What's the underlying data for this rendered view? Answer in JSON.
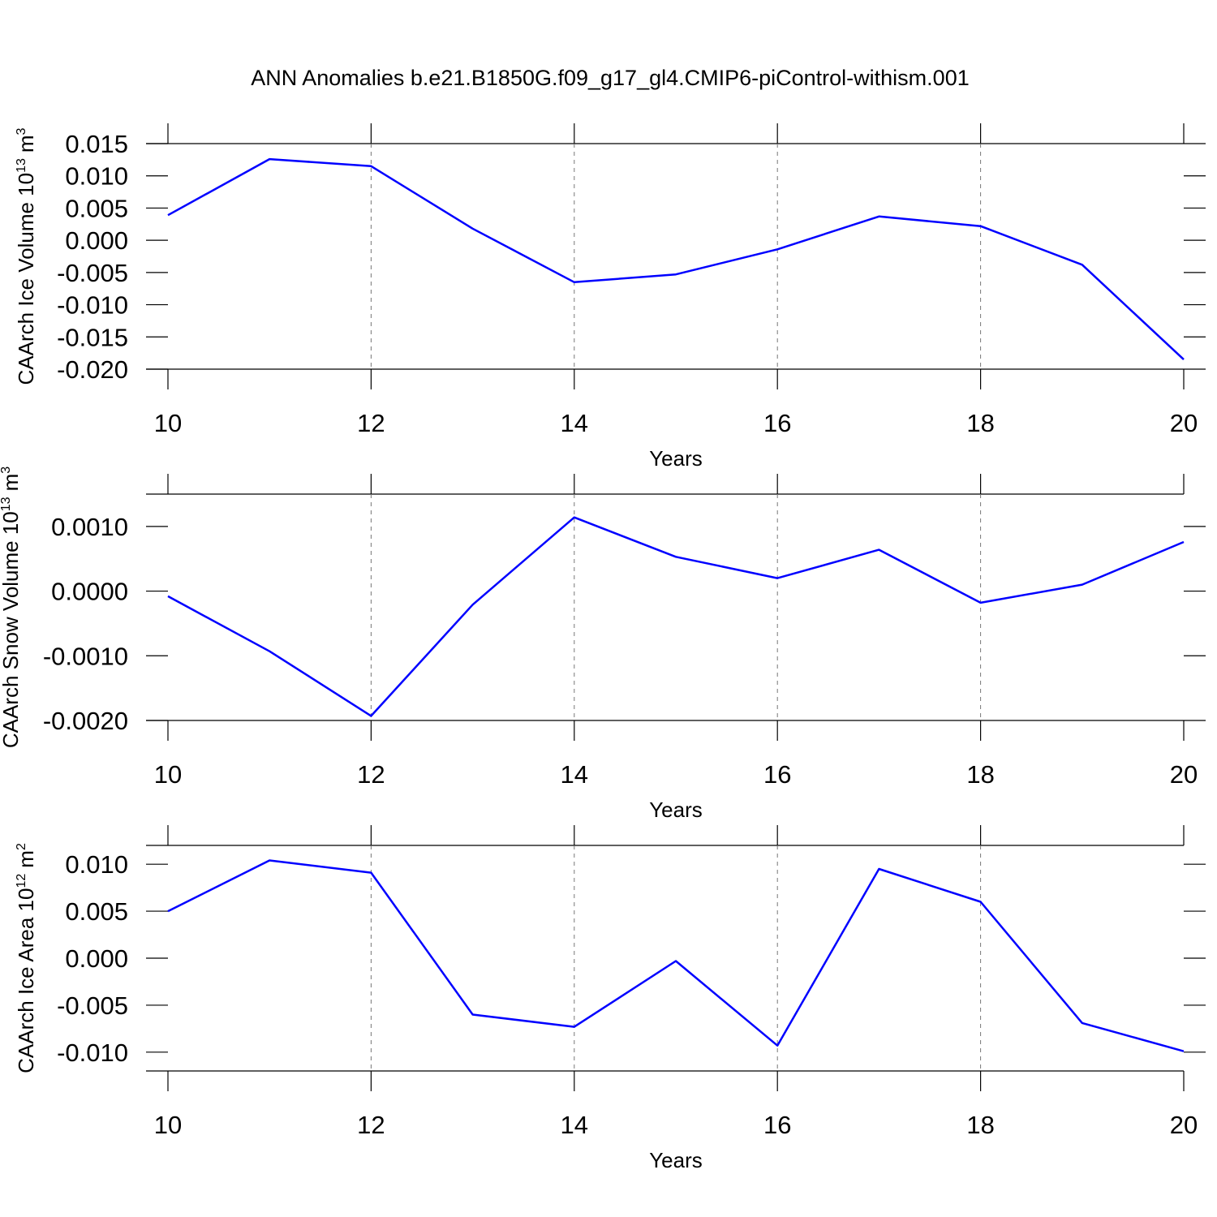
{
  "title": "ANN Anomalies b.e21.B1850G.f09_g17_gl4.CMIP6-piControl-withism.001",
  "chart_data": [
    {
      "type": "line",
      "xlabel": "Years",
      "ylabel": {
        "base": "CAArch Ice Volume 10",
        "exp": "13",
        "unit": "m",
        "unit_exp": "3"
      },
      "x": [
        10,
        11,
        12,
        13,
        14,
        15,
        16,
        17,
        18,
        19,
        20
      ],
      "values": [
        0.0039,
        0.0126,
        0.0115,
        0.0018,
        -0.0065,
        -0.0053,
        -0.0014,
        0.0037,
        0.0022,
        -0.0038,
        -0.0185
      ],
      "color": "#0000ff",
      "xlim": [
        10,
        20
      ],
      "xticks": [
        10,
        12,
        14,
        16,
        18,
        20
      ],
      "ylim": [
        -0.02,
        0.015
      ],
      "yticks": [
        {
          "value": -0.02,
          "label": "-0.020"
        },
        -0.015,
        {
          "value": -0.01,
          "label": "-0.010"
        },
        -0.005,
        {
          "value": 0,
          "label": "0.000"
        },
        0.005,
        {
          "value": 0.01,
          "label": "0.010"
        },
        0.015
      ],
      "grid": true
    },
    {
      "type": "line",
      "xlabel": "Years",
      "ylabel": {
        "base": "CAArch Snow Volume 10",
        "exp": "13",
        "unit": "m",
        "unit_exp": "3"
      },
      "x": [
        10,
        11,
        12,
        13,
        14,
        15,
        16,
        17,
        18,
        19,
        20
      ],
      "values": [
        -8e-05,
        -0.00093,
        -0.00193,
        -0.00021,
        0.00114,
        0.00053,
        0.0002,
        0.00064,
        -0.00018,
        0.0001,
        0.00076
      ],
      "color": "#0000ff",
      "xlim": [
        10,
        20
      ],
      "xticks": [
        10,
        12,
        14,
        16,
        18,
        20
      ],
      "ylim": [
        -0.002,
        0.0015
      ],
      "yticks": [
        {
          "value": -0.002,
          "label": "-0.0020"
        },
        {
          "value": -0.001,
          "label": "-0.0010"
        },
        {
          "value": 0,
          "label": "0.0000"
        },
        {
          "value": 0.001,
          "label": "0.0010"
        }
      ],
      "grid": true
    },
    {
      "type": "line",
      "xlabel": "Years",
      "ylabel": {
        "base": "CAArch Ice Area 10",
        "exp": "12",
        "unit": "m",
        "unit_exp": "2"
      },
      "x": [
        10,
        11,
        12,
        13,
        14,
        15,
        16,
        17,
        18,
        19,
        20
      ],
      "values": [
        0.005,
        0.0104,
        0.0091,
        -0.006,
        -0.0073,
        -0.0003,
        -0.0093,
        0.0095,
        0.006,
        -0.0069,
        -0.0099
      ],
      "color": "#0000ff",
      "xlim": [
        10,
        20
      ],
      "xticks": [
        10,
        12,
        14,
        16,
        18,
        20
      ],
      "ylim": [
        -0.012,
        0.012
      ],
      "yticks": [
        {
          "value": -0.01,
          "label": "-0.010"
        },
        -0.005,
        {
          "value": 0,
          "label": "0.000"
        },
        0.005,
        {
          "value": 0.01,
          "label": "0.010"
        }
      ],
      "grid": true
    }
  ]
}
